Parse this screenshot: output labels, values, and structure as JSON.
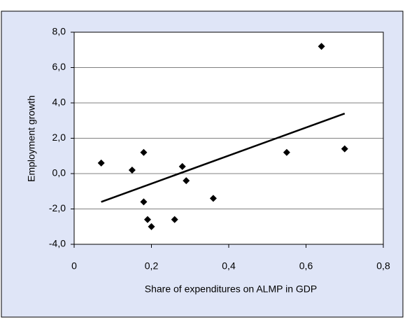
{
  "chart_data": {
    "type": "scatter",
    "x_label": "Share of expenditures on ALMP in GDP",
    "y_label": "Employment growth",
    "x": [
      0.07,
      0.15,
      0.18,
      0.18,
      0.19,
      0.2,
      0.26,
      0.28,
      0.29,
      0.36,
      0.55,
      0.64,
      0.7
    ],
    "values": [
      0.6,
      0.2,
      1.2,
      -1.6,
      -2.6,
      -3.0,
      -2.6,
      0.4,
      -0.4,
      -1.4,
      1.2,
      7.2,
      1.4
    ],
    "color": "#000000",
    "trendline": {
      "x": [
        0.07,
        0.7
      ],
      "y": [
        -1.6,
        3.4
      ]
    },
    "xlim": [
      0,
      0.8
    ],
    "xticks": [
      0,
      {
        "value": 0.2,
        "label": "0,2"
      },
      {
        "value": 0.4,
        "label": "0,4"
      },
      {
        "value": 0.6,
        "label": "0,6"
      },
      {
        "value": 0.8,
        "label": "0,8"
      }
    ],
    "ylim": [
      -4,
      8
    ],
    "yticks": [
      {
        "value": -4,
        "label": "-4,0"
      },
      {
        "value": -2,
        "label": "-2,0"
      },
      {
        "value": 0,
        "label": "0,0"
      },
      {
        "value": 2,
        "label": "2,0"
      },
      {
        "value": 4,
        "label": "4,0"
      },
      {
        "value": 6,
        "label": "6,0"
      },
      {
        "value": 8,
        "label": "8,0"
      }
    ],
    "grid": true
  }
}
